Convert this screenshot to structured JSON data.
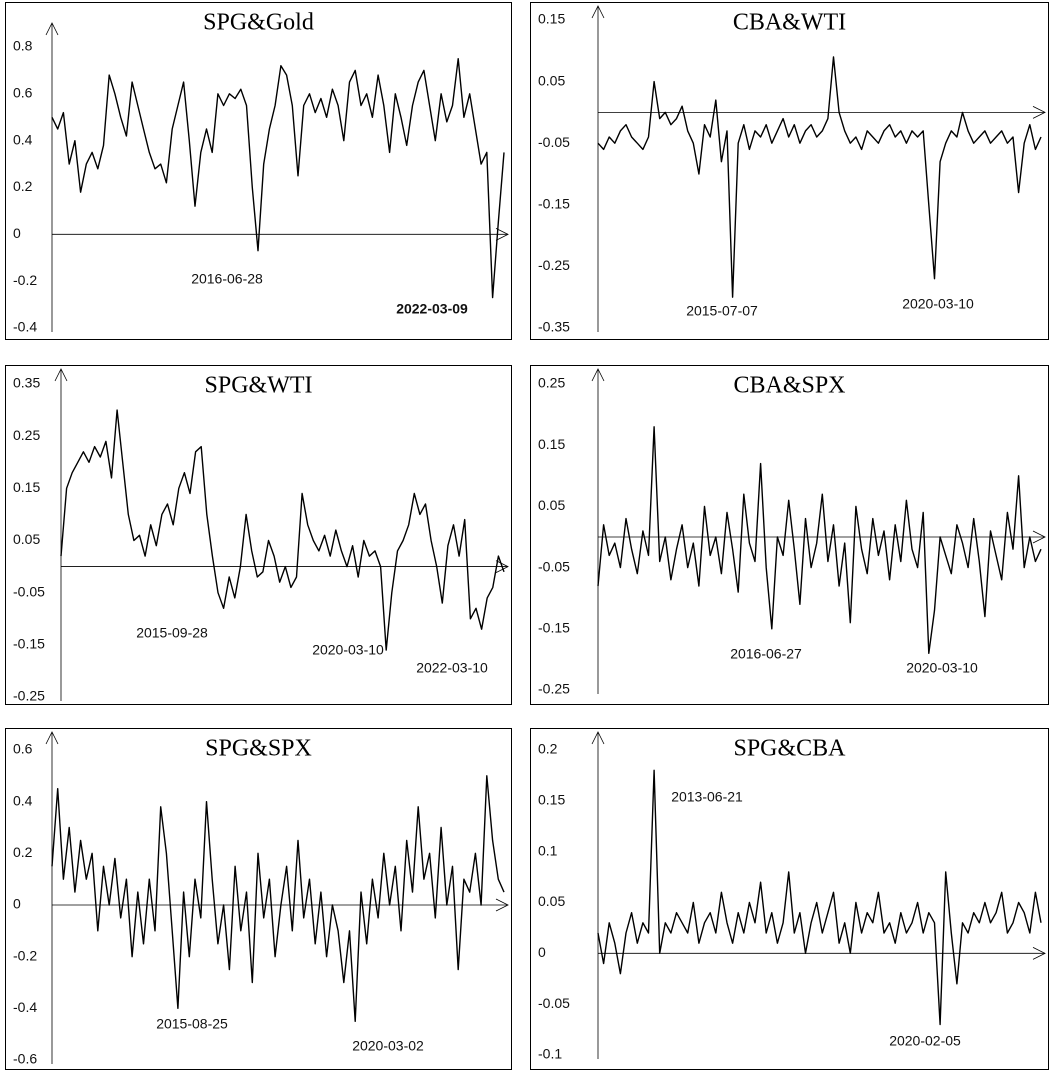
{
  "chart_data": [
    {
      "type": "line",
      "title": "SPG&Gold",
      "color": "#000000",
      "ylim": [
        -0.4,
        0.8
      ],
      "yticks": [
        0.8,
        0.6,
        0.4,
        0.2,
        0,
        -0.2,
        -0.4
      ],
      "annotations": [
        "2016-06-28",
        "2022-03-09"
      ],
      "values": [
        0.5,
        0.45,
        0.52,
        0.3,
        0.4,
        0.18,
        0.3,
        0.35,
        0.28,
        0.38,
        0.68,
        0.6,
        0.5,
        0.42,
        0.65,
        0.55,
        0.45,
        0.35,
        0.28,
        0.3,
        0.22,
        0.45,
        0.55,
        0.65,
        0.4,
        0.12,
        0.35,
        0.45,
        0.35,
        0.6,
        0.55,
        0.6,
        0.58,
        0.62,
        0.55,
        0.2,
        -0.07,
        0.3,
        0.45,
        0.55,
        0.72,
        0.68,
        0.55,
        0.25,
        0.55,
        0.6,
        0.52,
        0.58,
        0.5,
        0.62,
        0.55,
        0.4,
        0.65,
        0.7,
        0.55,
        0.6,
        0.5,
        0.68,
        0.55,
        0.35,
        0.6,
        0.5,
        0.38,
        0.55,
        0.65,
        0.7,
        0.55,
        0.4,
        0.6,
        0.48,
        0.55,
        0.75,
        0.5,
        0.6,
        0.45,
        0.3,
        0.35,
        -0.27,
        0.05,
        0.35
      ]
    },
    {
      "type": "line",
      "title": "CBA&WTI",
      "color": "#000000",
      "ylim": [
        -0.35,
        0.15
      ],
      "yticks": [
        0.15,
        0.05,
        -0.05,
        -0.15,
        -0.25,
        -0.35
      ],
      "annotations": [
        "2015-07-07",
        "2020-03-10"
      ],
      "values": [
        -0.05,
        -0.06,
        -0.04,
        -0.05,
        -0.03,
        -0.02,
        -0.04,
        -0.05,
        -0.06,
        -0.04,
        0.05,
        -0.01,
        0.0,
        -0.02,
        -0.01,
        0.01,
        -0.03,
        -0.05,
        -0.1,
        -0.02,
        -0.04,
        0.02,
        -0.08,
        -0.03,
        -0.3,
        -0.05,
        -0.02,
        -0.06,
        -0.03,
        -0.04,
        -0.02,
        -0.05,
        -0.03,
        -0.01,
        -0.04,
        -0.02,
        -0.05,
        -0.03,
        -0.02,
        -0.04,
        -0.03,
        -0.01,
        0.09,
        0.0,
        -0.03,
        -0.05,
        -0.04,
        -0.06,
        -0.03,
        -0.04,
        -0.05,
        -0.03,
        -0.02,
        -0.04,
        -0.03,
        -0.05,
        -0.03,
        -0.04,
        -0.03,
        -0.15,
        -0.27,
        -0.08,
        -0.05,
        -0.03,
        -0.04,
        0.0,
        -0.03,
        -0.05,
        -0.04,
        -0.03,
        -0.05,
        -0.04,
        -0.03,
        -0.05,
        -0.04,
        -0.13,
        -0.05,
        -0.02,
        -0.06,
        -0.04
      ]
    },
    {
      "type": "line",
      "title": "SPG&WTI",
      "color": "#000000",
      "ylim": [
        -0.25,
        0.35
      ],
      "yticks": [
        0.35,
        0.25,
        0.15,
        0.05,
        -0.05,
        -0.15,
        -0.25
      ],
      "annotations": [
        "2015-09-28",
        "2020-03-10",
        "2022-03-10"
      ],
      "values": [
        0.02,
        0.15,
        0.18,
        0.2,
        0.22,
        0.2,
        0.23,
        0.21,
        0.24,
        0.17,
        0.3,
        0.2,
        0.1,
        0.05,
        0.06,
        0.02,
        0.08,
        0.04,
        0.1,
        0.12,
        0.08,
        0.15,
        0.18,
        0.14,
        0.22,
        0.23,
        0.1,
        0.02,
        -0.05,
        -0.08,
        -0.02,
        -0.06,
        0.0,
        0.1,
        0.03,
        -0.02,
        -0.01,
        0.05,
        0.02,
        -0.03,
        0.0,
        -0.04,
        -0.02,
        0.14,
        0.08,
        0.05,
        0.03,
        0.06,
        0.02,
        0.07,
        0.03,
        0.0,
        0.04,
        -0.02,
        0.05,
        0.02,
        0.03,
        0.0,
        -0.16,
        -0.05,
        0.03,
        0.05,
        0.08,
        0.14,
        0.1,
        0.12,
        0.05,
        0.0,
        -0.07,
        0.04,
        0.08,
        0.02,
        0.09,
        -0.1,
        -0.08,
        -0.12,
        -0.06,
        -0.04,
        0.02,
        -0.01
      ]
    },
    {
      "type": "line",
      "title": "CBA&SPX",
      "color": "#000000",
      "ylim": [
        -0.25,
        0.25
      ],
      "yticks": [
        0.25,
        0.15,
        0.05,
        -0.05,
        -0.15,
        -0.25
      ],
      "annotations": [
        "2016-06-27",
        "2020-03-10"
      ],
      "values": [
        -0.08,
        0.02,
        -0.03,
        -0.01,
        -0.05,
        0.03,
        -0.02,
        -0.06,
        0.01,
        -0.03,
        0.18,
        -0.04,
        0.0,
        -0.07,
        -0.02,
        0.02,
        -0.05,
        -0.01,
        -0.08,
        0.05,
        -0.03,
        0.0,
        -0.06,
        0.04,
        -0.02,
        -0.09,
        0.07,
        -0.01,
        -0.04,
        0.12,
        -0.05,
        -0.15,
        0.0,
        -0.03,
        0.06,
        -0.02,
        -0.11,
        0.03,
        -0.05,
        -0.01,
        0.07,
        -0.04,
        0.02,
        -0.08,
        -0.01,
        -0.14,
        0.05,
        -0.02,
        -0.06,
        0.03,
        -0.03,
        0.01,
        -0.07,
        0.02,
        -0.04,
        0.06,
        -0.02,
        -0.05,
        0.04,
        -0.19,
        -0.12,
        0.0,
        -0.03,
        -0.06,
        0.02,
        -0.01,
        -0.05,
        0.03,
        -0.04,
        -0.13,
        0.01,
        -0.03,
        -0.07,
        0.04,
        -0.02,
        0.1,
        -0.05,
        0.0,
        -0.04,
        -0.02
      ]
    },
    {
      "type": "line",
      "title": "SPG&SPX",
      "color": "#000000",
      "ylim": [
        -0.6,
        0.6
      ],
      "yticks": [
        0.6,
        0.4,
        0.2,
        0,
        -0.2,
        -0.4,
        -0.6
      ],
      "annotations": [
        "2015-08-25",
        "2020-03-02"
      ],
      "values": [
        0.15,
        0.45,
        0.1,
        0.3,
        0.05,
        0.25,
        0.1,
        0.2,
        -0.1,
        0.15,
        0.0,
        0.18,
        -0.05,
        0.1,
        -0.2,
        0.05,
        -0.15,
        0.1,
        -0.1,
        0.38,
        0.2,
        -0.1,
        -0.4,
        0.05,
        -0.2,
        0.1,
        -0.05,
        0.4,
        0.1,
        -0.15,
        0.0,
        -0.25,
        0.15,
        -0.1,
        0.05,
        -0.3,
        0.2,
        -0.05,
        0.1,
        -0.2,
        0.0,
        0.15,
        -0.1,
        0.25,
        -0.05,
        0.1,
        -0.15,
        0.05,
        -0.2,
        0.0,
        -0.1,
        -0.3,
        -0.1,
        -0.45,
        0.05,
        -0.15,
        0.1,
        -0.05,
        0.2,
        0.0,
        0.15,
        -0.1,
        0.25,
        0.05,
        0.38,
        0.1,
        0.2,
        -0.05,
        0.3,
        0.0,
        0.15,
        -0.25,
        0.1,
        0.05,
        0.2,
        0.0,
        0.5,
        0.25,
        0.1,
        0.05
      ]
    },
    {
      "type": "line",
      "title": "SPG&CBA",
      "color": "#000000",
      "ylim": [
        -0.1,
        0.2
      ],
      "yticks": [
        0.2,
        0.15,
        0.1,
        0.05,
        0,
        -0.05,
        -0.1
      ],
      "annotations": [
        "2013-06-21",
        "2020-02-05"
      ],
      "values": [
        0.02,
        -0.01,
        0.03,
        0.01,
        -0.02,
        0.02,
        0.04,
        0.01,
        0.03,
        0.02,
        0.18,
        0.0,
        0.03,
        0.02,
        0.04,
        0.03,
        0.02,
        0.05,
        0.01,
        0.03,
        0.04,
        0.02,
        0.06,
        0.03,
        0.01,
        0.04,
        0.02,
        0.05,
        0.03,
        0.07,
        0.02,
        0.04,
        0.01,
        0.03,
        0.08,
        0.02,
        0.04,
        0.0,
        0.03,
        0.05,
        0.02,
        0.04,
        0.06,
        0.01,
        0.03,
        0.0,
        0.05,
        0.02,
        0.04,
        0.03,
        0.06,
        0.02,
        0.03,
        0.01,
        0.04,
        0.02,
        0.03,
        0.05,
        0.02,
        0.04,
        0.03,
        -0.07,
        0.08,
        0.02,
        -0.03,
        0.03,
        0.02,
        0.04,
        0.03,
        0.05,
        0.03,
        0.04,
        0.06,
        0.02,
        0.03,
        0.05,
        0.04,
        0.02,
        0.06,
        0.03
      ]
    }
  ]
}
